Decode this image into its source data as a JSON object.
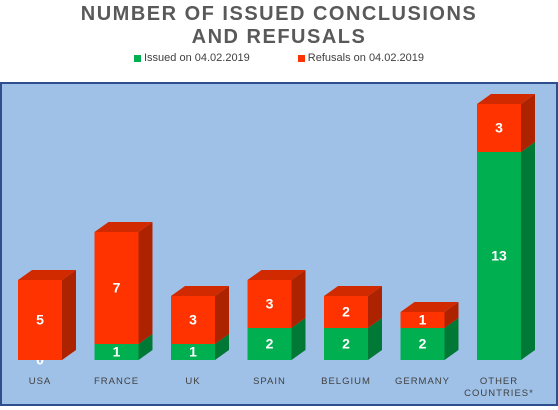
{
  "chart_data": {
    "type": "bar3d_stacked",
    "title": "NUMBER OF ISSUED CONCLUSIONS AND REFUSALS",
    "categories": [
      "USA",
      "FRANCE",
      "UK",
      "SPAIN",
      "BELGIUM",
      "GERMANY",
      "OTHER COUNTRIES*"
    ],
    "series": [
      {
        "name": "Issued on 04.02.2019",
        "color": "#00b050",
        "values": [
          0,
          1,
          1,
          2,
          2,
          2,
          13
        ]
      },
      {
        "name": "Refusals on 04.02.2019",
        "color": "#ff3300",
        "values": [
          5,
          7,
          3,
          3,
          2,
          1,
          3
        ]
      }
    ],
    "ylim": [
      0,
      17
    ]
  }
}
